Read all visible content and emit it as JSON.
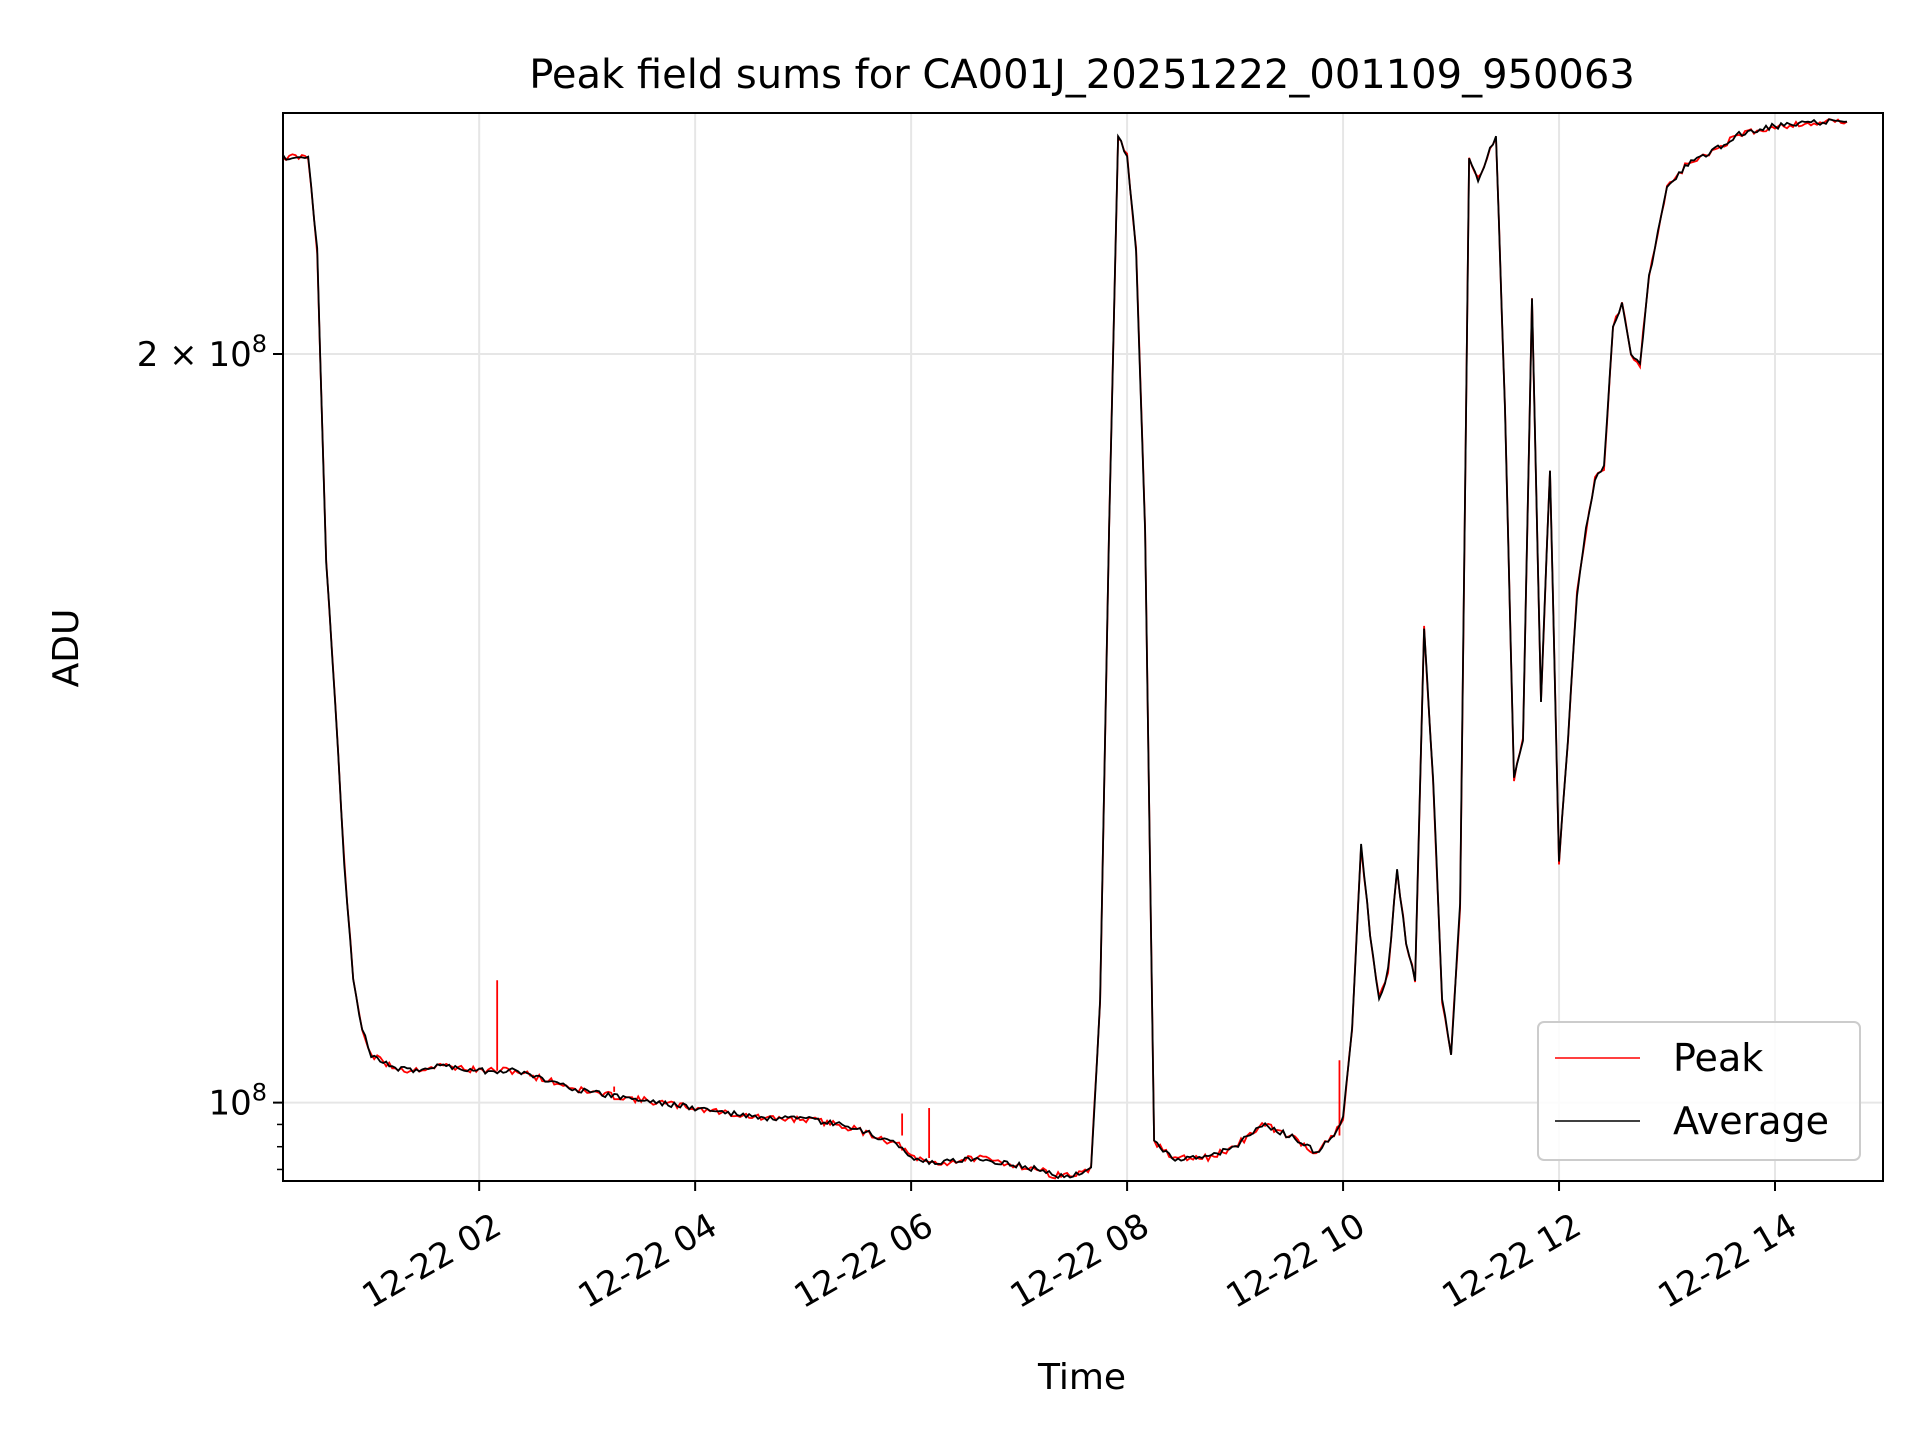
{
  "chart_data": {
    "type": "line",
    "title": "Peak field sums for CA001J_20251222_001109_950063",
    "xlabel": "Time",
    "ylabel": "ADU",
    "y_scale": "log",
    "ylim": [
      93000000,
      250000000
    ],
    "xlim": [
      "2025-12-22 00:11",
      "2025-12-22 15:00"
    ],
    "grid": true,
    "legend_position": "lower-right",
    "x_ticks": [
      {
        "value": "2025-12-22 02:00",
        "label": "12-22 02"
      },
      {
        "value": "2025-12-22 04:00",
        "label": "12-22 04"
      },
      {
        "value": "2025-12-22 06:00",
        "label": "12-22 06"
      },
      {
        "value": "2025-12-22 08:00",
        "label": "12-22 08"
      },
      {
        "value": "2025-12-22 10:00",
        "label": "12-22 10"
      },
      {
        "value": "2025-12-22 12:00",
        "label": "12-22 12"
      },
      {
        "value": "2025-12-22 14:00",
        "label": "12-22 14"
      }
    ],
    "y_ticks": [
      {
        "value": 100000000,
        "base": "10",
        "exp": "8",
        "mantissa": ""
      },
      {
        "value": 200000000,
        "base": "10",
        "exp": "8",
        "mantissa": "2 × "
      }
    ],
    "series": [
      {
        "name": "Peak",
        "color": "#ff0000",
        "spikes": [
          {
            "x": "2025-12-22 02:10",
            "y": 112000000
          },
          {
            "x": "2025-12-22 02:30",
            "y": 103000000
          },
          {
            "x": "2025-12-22 03:15",
            "y": 101500000
          },
          {
            "x": "2025-12-22 05:55",
            "y": 99000000
          },
          {
            "x": "2025-12-22 06:10",
            "y": 99500000
          },
          {
            "x": "2025-12-22 09:58",
            "y": 104000000
          }
        ]
      },
      {
        "name": "Average",
        "color": "#000000",
        "x": [
          "2025-12-22 00:11",
          "2025-12-22 00:25",
          "2025-12-22 00:30",
          "2025-12-22 00:35",
          "2025-12-22 00:40",
          "2025-12-22 00:45",
          "2025-12-22 00:50",
          "2025-12-22 00:55",
          "2025-12-22 01:00",
          "2025-12-22 01:10",
          "2025-12-22 01:20",
          "2025-12-22 01:40",
          "2025-12-22 02:00",
          "2025-12-22 02:20",
          "2025-12-22 02:40",
          "2025-12-22 03:00",
          "2025-12-22 03:20",
          "2025-12-22 03:40",
          "2025-12-22 04:00",
          "2025-12-22 04:20",
          "2025-12-22 04:40",
          "2025-12-22 05:00",
          "2025-12-22 05:20",
          "2025-12-22 05:40",
          "2025-12-22 05:55",
          "2025-12-22 06:00",
          "2025-12-22 06:15",
          "2025-12-22 06:35",
          "2025-12-22 06:55",
          "2025-12-22 07:10",
          "2025-12-22 07:20",
          "2025-12-22 07:30",
          "2025-12-22 07:40",
          "2025-12-22 07:45",
          "2025-12-22 07:50",
          "2025-12-22 07:55",
          "2025-12-22 08:00",
          "2025-12-22 08:05",
          "2025-12-22 08:10",
          "2025-12-22 08:15",
          "2025-12-22 08:25",
          "2025-12-22 08:45",
          "2025-12-22 09:00",
          "2025-12-22 09:15",
          "2025-12-22 09:30",
          "2025-12-22 09:45",
          "2025-12-22 09:55",
          "2025-12-22 10:00",
          "2025-12-22 10:05",
          "2025-12-22 10:10",
          "2025-12-22 10:15",
          "2025-12-22 10:20",
          "2025-12-22 10:25",
          "2025-12-22 10:30",
          "2025-12-22 10:35",
          "2025-12-22 10:40",
          "2025-12-22 10:45",
          "2025-12-22 10:50",
          "2025-12-22 10:55",
          "2025-12-22 11:00",
          "2025-12-22 11:05",
          "2025-12-22 11:10",
          "2025-12-22 11:15",
          "2025-12-22 11:20",
          "2025-12-22 11:25",
          "2025-12-22 11:30",
          "2025-12-22 11:35",
          "2025-12-22 11:40",
          "2025-12-22 11:45",
          "2025-12-22 11:50",
          "2025-12-22 11:55",
          "2025-12-22 12:00",
          "2025-12-22 12:05",
          "2025-12-22 12:10",
          "2025-12-22 12:15",
          "2025-12-22 12:20",
          "2025-12-22 12:25",
          "2025-12-22 12:30",
          "2025-12-22 12:35",
          "2025-12-22 12:40",
          "2025-12-22 12:45",
          "2025-12-22 12:50",
          "2025-12-22 13:00",
          "2025-12-22 13:10",
          "2025-12-22 13:20",
          "2025-12-22 13:40",
          "2025-12-22 14:00",
          "2025-12-22 14:30",
          "2025-12-22 14:40"
        ],
        "values": [
          240000000,
          240000000,
          220000000,
          165000000,
          145000000,
          125000000,
          112000000,
          107000000,
          104500000,
          103500000,
          103000000,
          103500000,
          103000000,
          103000000,
          102000000,
          101000000,
          100500000,
          100000000,
          99500000,
          99000000,
          98500000,
          98500000,
          98000000,
          97000000,
          96000000,
          95000000,
          94500000,
          95000000,
          94500000,
          94000000,
          93500000,
          93500000,
          94000000,
          110000000,
          170000000,
          245000000,
          240000000,
          220000000,
          170000000,
          96500000,
          95000000,
          95000000,
          96000000,
          98000000,
          97000000,
          95500000,
          97000000,
          98500000,
          107000000,
          127000000,
          117000000,
          110000000,
          113000000,
          124000000,
          116000000,
          112000000,
          155000000,
          135000000,
          110000000,
          104500000,
          120000000,
          240000000,
          235000000,
          240000000,
          245000000,
          190000000,
          135000000,
          140000000,
          210000000,
          145000000,
          180000000,
          125000000,
          140000000,
          160000000,
          170000000,
          178000000,
          180000000,
          205000000,
          210000000,
          200000000,
          198000000,
          215000000,
          233000000,
          238000000,
          240000000,
          245000000,
          247000000,
          248000000,
          248000000
        ]
      }
    ]
  }
}
